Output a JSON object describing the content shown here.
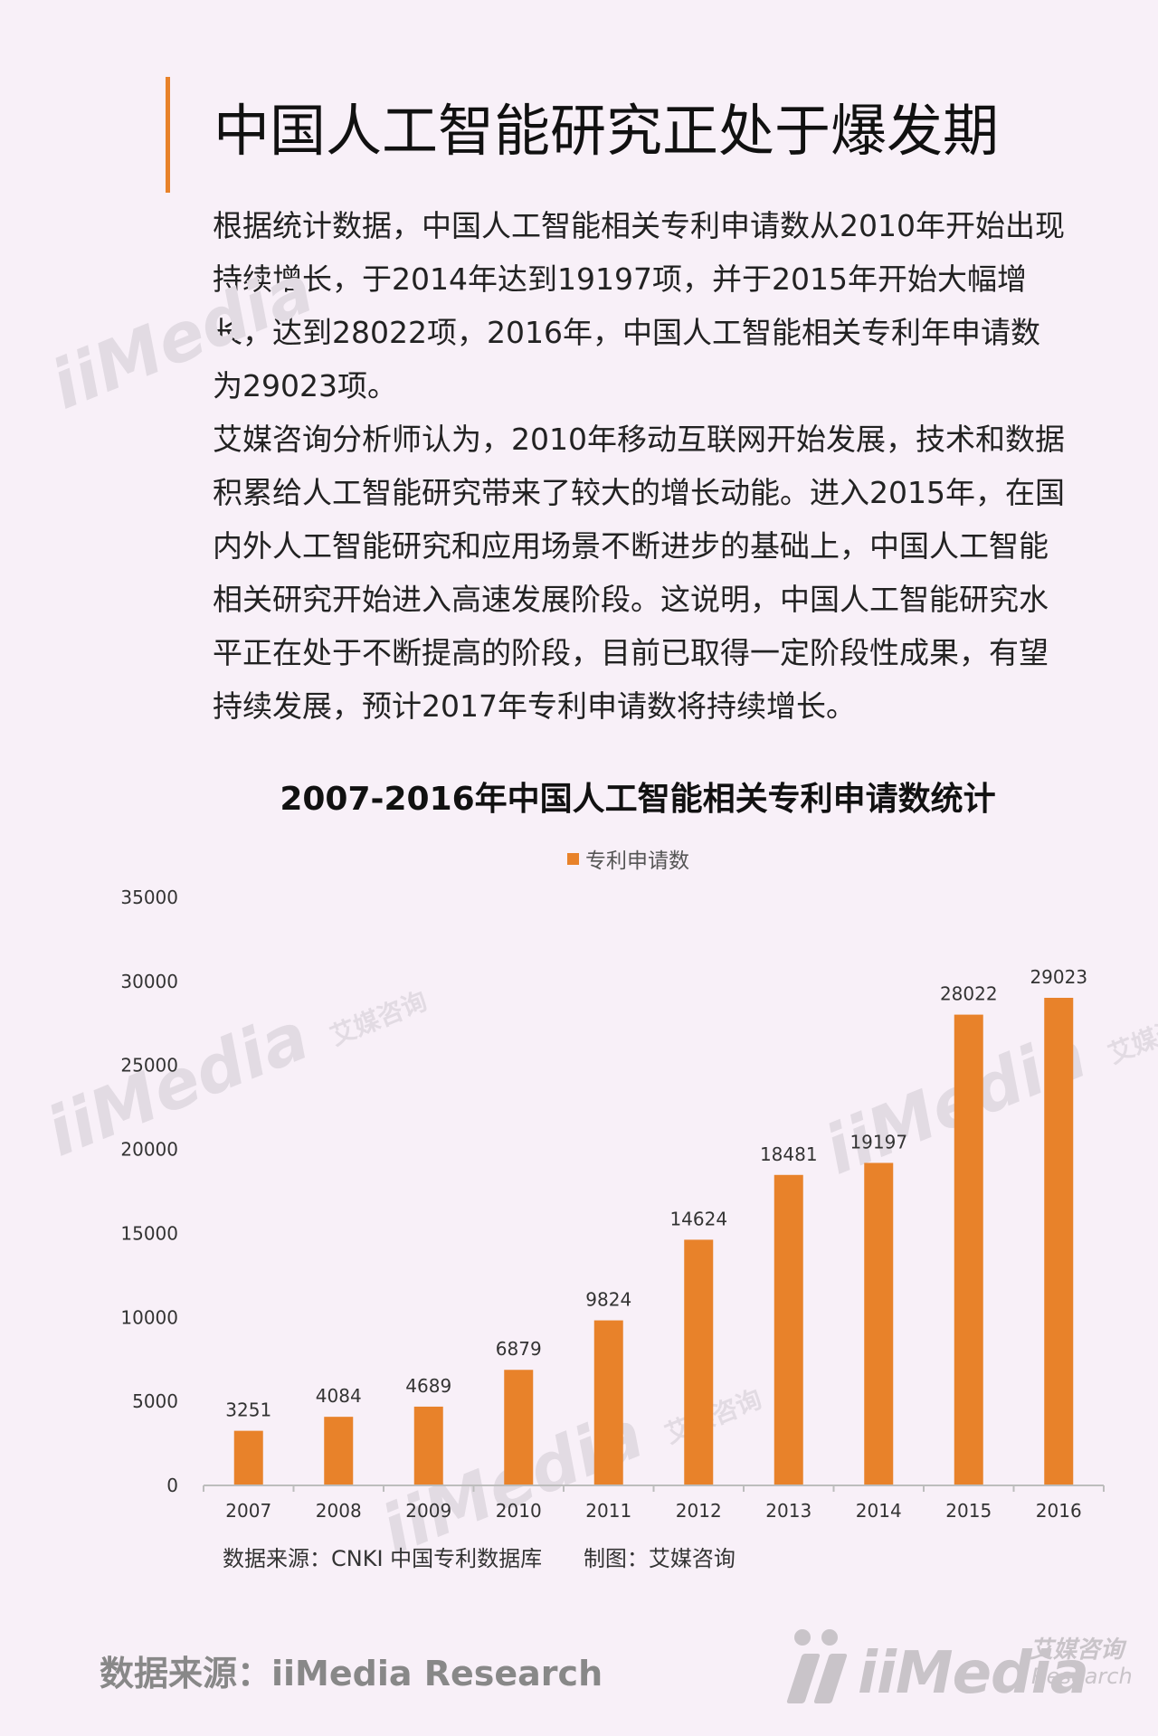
{
  "header": {
    "title": "中国人工智能研究正处于爆发期"
  },
  "body": {
    "paragraphs": [
      "根据统计数据，中国人工智能相关专利申请数从2010年开始出现持续增长，于2014年达到19197项，并于2015年开始大幅增长，达到28022项，2016年，中国人工智能相关专利年申请数为29023项。",
      "艾媒咨询分析师认为，2010年移动互联网开始发展，技术和数据积累给人工智能研究带来了较大的增长动能。进入2015年，在国内外人工智能研究和应用场景不断进步的基础上，中国人工智能相关研究开始进入高速发展阶段。这说明，中国人工智能研究水平正在处于不断提高的阶段，目前已取得一定阶段性成果，有望持续发展，预计2017年专利申请数将持续增长。"
    ]
  },
  "chart_data": {
    "type": "bar",
    "title": "2007-2016年中国人工智能相关专利申请数统计",
    "categories": [
      "2007",
      "2008",
      "2009",
      "2010",
      "2011",
      "2012",
      "2013",
      "2014",
      "2015",
      "2016"
    ],
    "series": [
      {
        "name": "专利申请数",
        "values": [
          3251,
          4084,
          4689,
          6879,
          9824,
          14624,
          18481,
          19197,
          28022,
          29023
        ]
      }
    ],
    "ylim": [
      0,
      35000
    ],
    "yticks": [
      0,
      5000,
      10000,
      15000,
      20000,
      25000,
      30000,
      35000
    ],
    "legend": "top-center",
    "grid": false,
    "data_labels": true,
    "bar_color": "#e8822a"
  },
  "chart_note": {
    "source": "数据来源：CNKI 中国专利数据库",
    "maker": "制图：艾媒咨询"
  },
  "footer": {
    "source": "数据来源：iiMedia Research"
  },
  "branding": {
    "logo_word": "iiMedia",
    "logo_cn": "艾媒咨询",
    "logo_en": "Research",
    "watermark_word": "iiMedia",
    "watermark_cn": "艾媒咨询"
  },
  "colors": {
    "accent": "#e8822a",
    "background": "#f8f0f8"
  }
}
